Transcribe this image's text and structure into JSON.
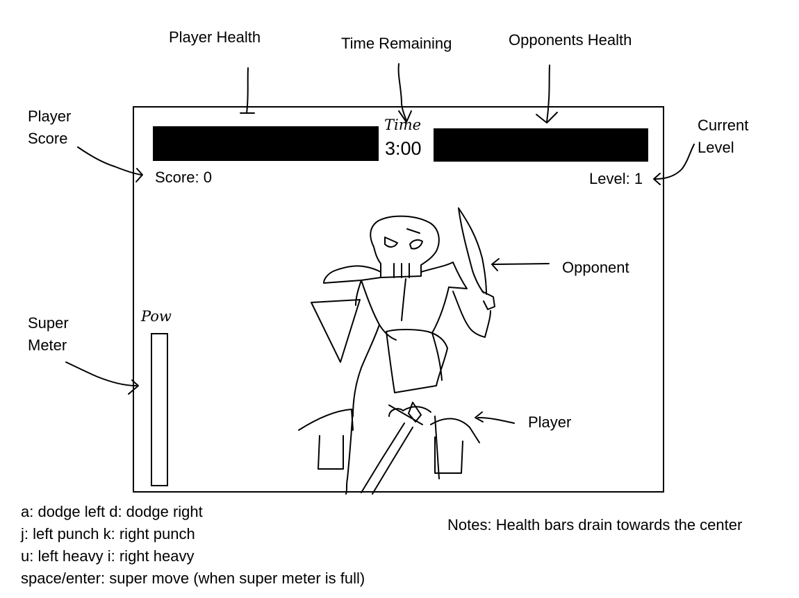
{
  "annotations": {
    "player_health": "Player Health",
    "time_remaining": "Time Remaining",
    "opponents_health": "Opponents Health",
    "player_score_line1": "Player",
    "player_score_line2": "Score",
    "current_level_line1": "Current",
    "current_level_line2": "Level",
    "opponent": "Opponent",
    "player": "Player",
    "super_meter_line1": "Super",
    "super_meter_line2": "Meter",
    "notes": "Notes: Health bars drain towards the center"
  },
  "hud": {
    "time_label": "Time",
    "timer": "3:00",
    "score": "Score: 0",
    "level": "Level: 1",
    "pow_label": "Pow",
    "player_health_fraction": 1.0,
    "opponent_health_fraction": 1.0,
    "super_meter_fraction": 0.0
  },
  "controls": [
    "a: dodge left  d: dodge right",
    "j: left punch k: right punch",
    "u: left heavy i: right heavy",
    "space/enter: super move (when super meter is full)"
  ],
  "colors": {
    "ink": "#000000",
    "paper": "#ffffff"
  }
}
